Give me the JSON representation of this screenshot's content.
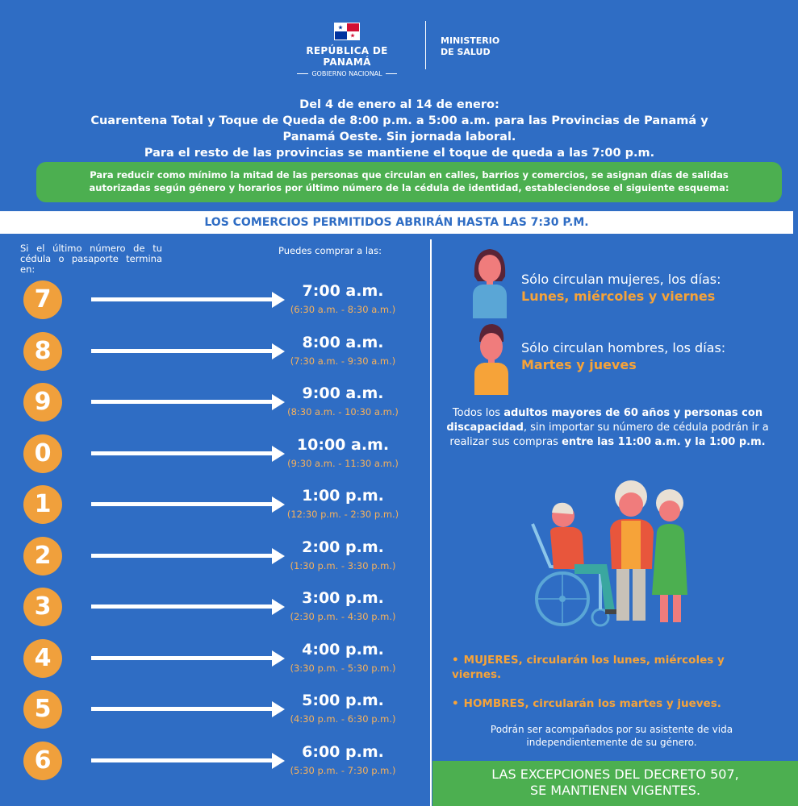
{
  "header": {
    "left_title": "REPÚBLICA DE PANAMÁ",
    "left_sub": "GOBIERNO NACIONAL",
    "right_title_1": "MINISTERIO",
    "right_title_2": "DE SALUD"
  },
  "intro": {
    "line1": "Del 4 de enero al 14 de enero:",
    "line2": "Cuarentena Total y Toque de Queda de 8:00 p.m. a 5:00 a.m. para las Provincias de Panamá y",
    "line3": "Panamá Oeste. Sin jornada laboral.",
    "line4": "Para el resto de las provincias se mantiene el toque de queda a las 7:00 p.m."
  },
  "green_box": {
    "line1": "Para reducir como mínimo la mitad de las personas que circulan en calles, barrios y comercios, se asignan días de salidas",
    "line2": "autorizadas según género y horarios por último número de la cédula de identidad, estableciendose el siguiente esquema:"
  },
  "banner": "LOS COMERCIOS PERMITIDOS ABRIRÁN HASTA LAS 7:30 P.M.",
  "left_header": "Si el último número de tu cédula o pasaporte termina en:",
  "right_header": "Puedes comprar a las:",
  "schedule": [
    {
      "digit": "7",
      "time": "7:00 a.m.",
      "range": "(6:30 a.m. - 8:30 a.m.)"
    },
    {
      "digit": "8",
      "time": "8:00 a.m.",
      "range": "(7:30 a.m. - 9:30 a.m.)"
    },
    {
      "digit": "9",
      "time": "9:00 a.m.",
      "range": "(8:30 a.m. - 10:30 a.m.)"
    },
    {
      "digit": "0",
      "time": "10:00 a.m.",
      "range": "(9:30 a.m. - 11:30 a.m.)"
    },
    {
      "digit": "1",
      "time": "1:00 p.m.",
      "range": "(12:30 p.m. - 2:30 p.m.)"
    },
    {
      "digit": "2",
      "time": "2:00 p.m.",
      "range": "(1:30 p.m. - 3:30 p.m.)"
    },
    {
      "digit": "3",
      "time": "3:00 p.m.",
      "range": "(2:30 p.m. - 4:30 p.m.)"
    },
    {
      "digit": "4",
      "time": "4:00 p.m.",
      "range": "(3:30 p.m. - 5:30 p.m.)"
    },
    {
      "digit": "5",
      "time": "5:00 p.m.",
      "range": "(4:30 p.m. - 6:30 p.m.)"
    },
    {
      "digit": "6",
      "time": "6:00 p.m.",
      "range": "(5:30 p.m. - 7:30 p.m.)"
    }
  ],
  "women": {
    "text": "Sólo circulan mujeres, los días:",
    "days": "Lunes, miércoles y viernes"
  },
  "men": {
    "text": "Sólo circulan hombres, los días:",
    "days": "Martes y jueves"
  },
  "elder_info": {
    "p1": "Todos los ",
    "b1": "adultos mayores de 60 años y personas con discapacidad",
    "p2": ", sin importar su número de cédula podrán ir a realizar sus compras ",
    "b2": "entre las 11:00 a.m. y la 1:00 p.m."
  },
  "bullets": [
    "MUJERES, circularán los lunes, miércoles y viernes.",
    "HOMBRES, circularán los martes y jueves."
  ],
  "note": "Podrán ser acompañados por su asistente de vida independientemente de su género.",
  "exceptions": {
    "line1": "LAS EXCEPCIONES DEL DECRETO 507,",
    "line2": "SE MANTIENEN VIGENTES."
  },
  "colors": {
    "background": "#2f6dc4",
    "green": "#4caf50",
    "orange": "#f0a03c"
  }
}
